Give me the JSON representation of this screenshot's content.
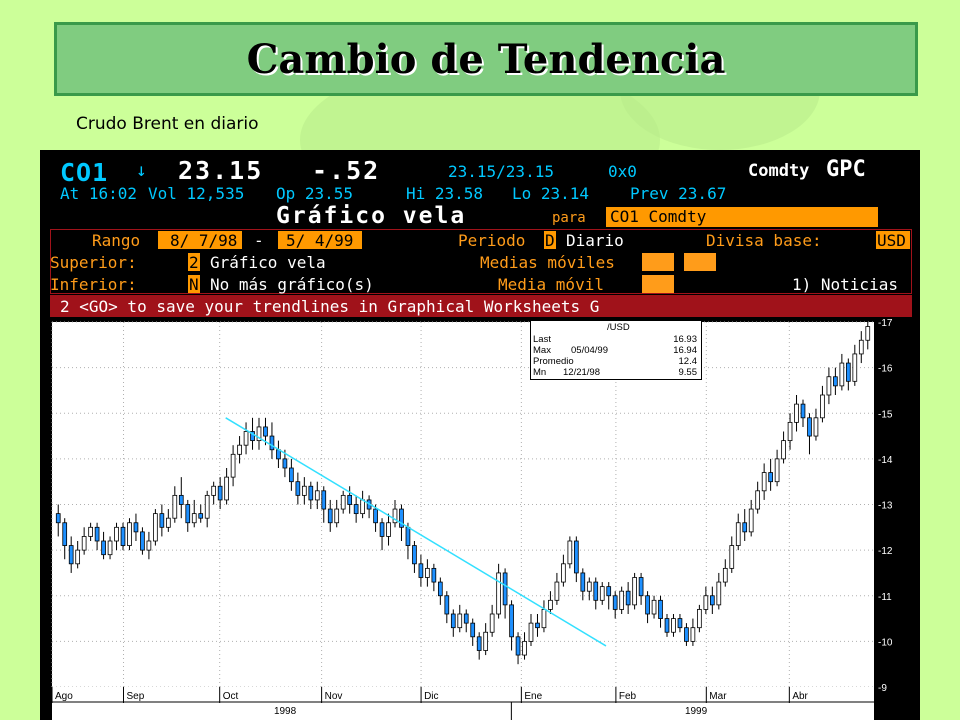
{
  "slide": {
    "title": "Cambio de Tendencia",
    "subtitle": "Crudo Brent en diario"
  },
  "terminal": {
    "header": {
      "ticker": "CO1",
      "arrow": "↓",
      "price": "23.15",
      "change": "-.52",
      "bid_ask": "23.15/23.15",
      "size": "0x0",
      "sector": "Comdty",
      "function": "GPC"
    },
    "line2": {
      "time": "At 16:02",
      "vol": "Vol 12,535",
      "open": "Op 23.55",
      "hi": "Hi 23.58",
      "lo": "Lo 23.14",
      "prev": "Prev 23.67"
    },
    "chart_title": "Gráfico vela",
    "para_label": "para",
    "security": "CO1 Comdty",
    "rango_label": "Rango",
    "rango_start": "8/ 7/98",
    "rango_dash": "-",
    "rango_end": "5/ 4/99",
    "periodo_label": "Periodo",
    "periodo_code": "D",
    "periodo_value": "Diario",
    "divisa_label": "Divisa base:",
    "divisa_value": "USD",
    "superior_label": "Superior:",
    "superior_code": "2",
    "superior_value": "Gráfico vela",
    "medias_moviles_label": "Medias móviles",
    "inferior_label": "Inferior:",
    "inferior_code": "N",
    "inferior_value": "No más gráfico(s)",
    "media_movil_label": "Media móvil",
    "noticias": "1) Noticias",
    "message": "2 <GO> to save your trendlines in Graphical Worksheets G",
    "infobox": {
      "currency": "/USD",
      "rows": [
        {
          "label": "Last",
          "date": "",
          "value": "16.93"
        },
        {
          "label": "Max",
          "date": "05/04/99",
          "value": "16.94"
        },
        {
          "label": "Promedio",
          "date": "",
          "value": "12.4"
        },
        {
          "label": "Mn",
          "date": "12/21/98",
          "value": "9.55"
        }
      ]
    }
  },
  "chart_data": {
    "type": "candlestick",
    "title": "",
    "x_months": [
      "Ago",
      "Sep",
      "Oct",
      "Nov",
      "Dic",
      "Ene",
      "Feb",
      "Mar",
      "Abr"
    ],
    "x_years": [
      "1998",
      "1999"
    ],
    "y_ticks": [
      9,
      10,
      11,
      12,
      13,
      14,
      15,
      16,
      17
    ],
    "ylim": [
      9,
      17
    ],
    "trendline": {
      "start": {
        "date": "1998-10-01",
        "value": 14.9
      },
      "end": {
        "date": "1999-02-01",
        "value": 9.9
      }
    },
    "candles": [
      [
        12.8,
        12.6,
        12.3,
        13.0
      ],
      [
        12.6,
        12.1,
        11.8,
        12.7
      ],
      [
        12.1,
        11.7,
        11.5,
        12.3
      ],
      [
        11.7,
        12.0,
        11.6,
        12.2
      ],
      [
        12.0,
        12.3,
        11.9,
        12.5
      ],
      [
        12.3,
        12.5,
        12.2,
        12.6
      ],
      [
        12.5,
        12.2,
        12.0,
        12.6
      ],
      [
        12.2,
        11.9,
        11.8,
        12.4
      ],
      [
        11.9,
        12.2,
        11.8,
        12.3
      ],
      [
        12.2,
        12.5,
        12.0,
        12.6
      ],
      [
        12.5,
        12.1,
        12.0,
        12.6
      ],
      [
        12.1,
        12.6,
        12.0,
        12.7
      ],
      [
        12.6,
        12.4,
        12.2,
        12.8
      ],
      [
        12.4,
        12.0,
        11.9,
        12.5
      ],
      [
        12.0,
        12.2,
        11.8,
        12.4
      ],
      [
        12.2,
        12.8,
        12.1,
        12.9
      ],
      [
        12.8,
        12.5,
        12.3,
        13.0
      ],
      [
        12.5,
        12.7,
        12.4,
        12.9
      ],
      [
        12.7,
        13.2,
        12.6,
        13.4
      ],
      [
        13.2,
        13.0,
        12.7,
        13.6
      ],
      [
        13.0,
        12.6,
        12.4,
        13.1
      ],
      [
        12.6,
        12.8,
        12.5,
        13.1
      ],
      [
        12.8,
        12.7,
        12.6,
        13.0
      ],
      [
        12.7,
        13.2,
        12.5,
        13.3
      ],
      [
        13.2,
        13.4,
        13.0,
        13.5
      ],
      [
        13.4,
        13.1,
        12.9,
        13.6
      ],
      [
        13.1,
        13.6,
        13.0,
        13.8
      ],
      [
        13.6,
        14.1,
        13.4,
        14.3
      ],
      [
        14.1,
        14.3,
        13.9,
        14.5
      ],
      [
        14.3,
        14.6,
        14.1,
        14.8
      ],
      [
        14.6,
        14.4,
        14.2,
        14.9
      ],
      [
        14.4,
        14.7,
        14.2,
        14.9
      ],
      [
        14.7,
        14.5,
        14.3,
        14.9
      ],
      [
        14.5,
        14.2,
        14.0,
        14.8
      ],
      [
        14.2,
        14.0,
        13.8,
        14.4
      ],
      [
        14.0,
        13.8,
        13.6,
        14.2
      ],
      [
        13.8,
        13.5,
        13.3,
        14.0
      ],
      [
        13.5,
        13.2,
        13.0,
        13.7
      ],
      [
        13.2,
        13.4,
        13.0,
        13.6
      ],
      [
        13.4,
        13.1,
        12.9,
        13.5
      ],
      [
        13.1,
        13.3,
        12.9,
        13.5
      ],
      [
        13.3,
        12.9,
        12.6,
        13.4
      ],
      [
        12.9,
        12.6,
        12.4,
        13.1
      ],
      [
        12.6,
        12.9,
        12.5,
        13.1
      ],
      [
        12.9,
        13.2,
        12.8,
        13.3
      ],
      [
        13.2,
        13.0,
        12.8,
        13.4
      ],
      [
        13.0,
        12.8,
        12.6,
        13.2
      ],
      [
        12.8,
        13.1,
        12.7,
        13.3
      ],
      [
        13.1,
        12.9,
        12.7,
        13.2
      ],
      [
        12.9,
        12.6,
        12.4,
        13.0
      ],
      [
        12.6,
        12.3,
        12.0,
        12.7
      ],
      [
        12.3,
        12.6,
        12.1,
        12.8
      ],
      [
        12.6,
        12.9,
        12.5,
        13.1
      ],
      [
        12.9,
        12.5,
        12.2,
        13.0
      ],
      [
        12.5,
        12.1,
        11.8,
        12.6
      ],
      [
        12.1,
        11.7,
        11.5,
        12.2
      ],
      [
        11.7,
        11.4,
        11.2,
        11.9
      ],
      [
        11.4,
        11.6,
        11.2,
        11.8
      ],
      [
        11.6,
        11.3,
        11.1,
        11.7
      ],
      [
        11.3,
        11.0,
        10.8,
        11.4
      ],
      [
        11.0,
        10.6,
        10.4,
        11.1
      ],
      [
        10.6,
        10.3,
        10.1,
        10.7
      ],
      [
        10.3,
        10.6,
        10.2,
        10.8
      ],
      [
        10.6,
        10.4,
        10.2,
        10.7
      ],
      [
        10.4,
        10.1,
        9.9,
        10.5
      ],
      [
        10.1,
        9.8,
        9.6,
        10.2
      ],
      [
        9.8,
        10.2,
        9.7,
        10.4
      ],
      [
        10.2,
        10.6,
        10.1,
        10.8
      ],
      [
        10.6,
        11.5,
        10.5,
        11.7
      ],
      [
        11.5,
        10.8,
        10.5,
        11.6
      ],
      [
        10.8,
        10.1,
        9.8,
        10.9
      ],
      [
        10.1,
        9.7,
        9.5,
        10.2
      ],
      [
        9.7,
        10.0,
        9.6,
        10.2
      ],
      [
        10.0,
        10.4,
        9.9,
        10.6
      ],
      [
        10.4,
        10.3,
        10.1,
        10.6
      ],
      [
        10.3,
        10.7,
        10.2,
        10.9
      ],
      [
        10.7,
        10.9,
        10.6,
        11.1
      ],
      [
        10.9,
        11.3,
        10.8,
        11.5
      ],
      [
        11.3,
        11.7,
        11.2,
        11.9
      ],
      [
        11.7,
        12.2,
        11.6,
        12.3
      ],
      [
        12.2,
        11.5,
        11.3,
        12.3
      ],
      [
        11.5,
        11.1,
        10.9,
        11.6
      ],
      [
        11.1,
        11.3,
        10.9,
        11.4
      ],
      [
        11.3,
        10.9,
        10.7,
        11.4
      ],
      [
        10.9,
        11.2,
        10.8,
        11.3
      ],
      [
        11.2,
        11.0,
        10.7,
        11.3
      ],
      [
        11.0,
        10.7,
        10.5,
        11.1
      ],
      [
        10.7,
        11.1,
        10.6,
        11.2
      ],
      [
        11.1,
        10.8,
        10.6,
        11.3
      ],
      [
        10.8,
        11.4,
        10.7,
        11.5
      ],
      [
        11.4,
        11.0,
        10.8,
        11.5
      ],
      [
        11.0,
        10.6,
        10.4,
        11.1
      ],
      [
        10.6,
        10.9,
        10.5,
        11.0
      ],
      [
        10.9,
        10.5,
        10.3,
        11.0
      ],
      [
        10.5,
        10.2,
        10.1,
        10.6
      ],
      [
        10.2,
        10.5,
        10.1,
        10.6
      ],
      [
        10.5,
        10.3,
        10.2,
        10.6
      ],
      [
        10.3,
        10.0,
        9.9,
        10.4
      ],
      [
        10.0,
        10.3,
        9.9,
        10.5
      ],
      [
        10.3,
        10.7,
        10.2,
        10.8
      ],
      [
        10.7,
        11.0,
        10.6,
        11.2
      ],
      [
        11.0,
        10.8,
        10.6,
        11.2
      ],
      [
        10.8,
        11.3,
        10.7,
        11.5
      ],
      [
        11.3,
        11.6,
        11.2,
        11.8
      ],
      [
        11.6,
        12.1,
        11.5,
        12.3
      ],
      [
        12.1,
        12.6,
        12.0,
        12.8
      ],
      [
        12.6,
        12.4,
        12.2,
        12.9
      ],
      [
        12.4,
        12.9,
        12.3,
        13.1
      ],
      [
        12.9,
        13.3,
        12.8,
        13.5
      ],
      [
        13.3,
        13.7,
        13.1,
        13.9
      ],
      [
        13.7,
        13.5,
        13.3,
        14.0
      ],
      [
        13.5,
        14.0,
        13.4,
        14.2
      ],
      [
        14.0,
        14.4,
        13.9,
        14.6
      ],
      [
        14.4,
        14.8,
        14.2,
        15.0
      ],
      [
        14.8,
        15.2,
        14.6,
        15.4
      ],
      [
        15.2,
        14.9,
        14.7,
        15.3
      ],
      [
        14.9,
        14.5,
        14.1,
        15.0
      ],
      [
        14.5,
        14.9,
        14.4,
        15.1
      ],
      [
        14.9,
        15.4,
        14.8,
        15.6
      ],
      [
        15.4,
        15.8,
        15.2,
        16.0
      ],
      [
        15.8,
        15.6,
        15.4,
        16.0
      ],
      [
        15.6,
        16.1,
        15.5,
        16.3
      ],
      [
        16.1,
        15.7,
        15.5,
        16.2
      ],
      [
        15.7,
        16.3,
        15.6,
        16.5
      ],
      [
        16.3,
        16.6,
        16.1,
        16.8
      ],
      [
        16.6,
        16.9,
        16.4,
        17.0
      ]
    ]
  }
}
